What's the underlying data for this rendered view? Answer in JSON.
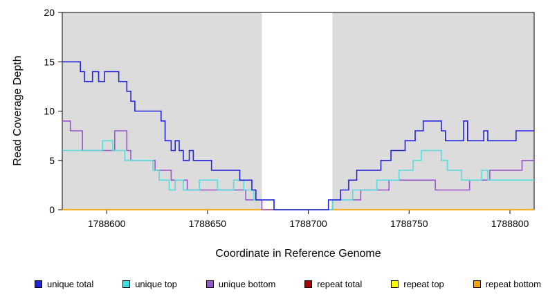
{
  "chart_data": {
    "type": "line",
    "subtype": "step-coverage-plot",
    "title": "",
    "xlabel": "Coordinate in Reference Genome",
    "ylabel": "Read Coverage Depth",
    "xlim": [
      1788578,
      1788812
    ],
    "ylim": [
      0,
      20
    ],
    "x_ticks": [
      1788600,
      1788650,
      1788700,
      1788750,
      1788800
    ],
    "y_ticks": [
      0,
      5,
      10,
      15,
      20
    ],
    "grid": false,
    "legend_position": "bottom",
    "background": {
      "plot_color": "#dcdcdc",
      "gap_region": [
        1788677,
        1788712
      ],
      "gap_color": "#ffffff"
    },
    "series": [
      {
        "name": "repeat total",
        "color": "#aa0000",
        "points": [
          [
            1788578,
            0
          ],
          [
            1788812,
            0
          ]
        ]
      },
      {
        "name": "repeat top",
        "color": "#ffff00",
        "points": [
          [
            1788578,
            0
          ],
          [
            1788812,
            0
          ]
        ]
      },
      {
        "name": "repeat bottom",
        "color": "#ffa500",
        "points": [
          [
            1788578,
            0
          ],
          [
            1788812,
            0
          ]
        ]
      },
      {
        "name": "unique bottom",
        "color": "#9955cc",
        "points": [
          [
            1788578,
            9
          ],
          [
            1788582,
            8
          ],
          [
            1788588,
            6
          ],
          [
            1788604,
            8
          ],
          [
            1788610,
            6
          ],
          [
            1788612,
            5
          ],
          [
            1788624,
            4
          ],
          [
            1788632,
            3
          ],
          [
            1788640,
            2
          ],
          [
            1788669,
            1
          ],
          [
            1788677,
            0
          ],
          [
            1788712,
            1
          ],
          [
            1788726,
            2
          ],
          [
            1788740,
            3
          ],
          [
            1788763,
            2
          ],
          [
            1788780,
            3
          ],
          [
            1788790,
            4
          ],
          [
            1788806,
            5
          ]
        ]
      },
      {
        "name": "unique top",
        "color": "#55dddd",
        "points": [
          [
            1788578,
            6
          ],
          [
            1788598,
            7
          ],
          [
            1788603,
            6
          ],
          [
            1788609,
            5
          ],
          [
            1788623,
            4
          ],
          [
            1788626,
            3
          ],
          [
            1788631,
            2
          ],
          [
            1788634,
            3
          ],
          [
            1788638,
            2
          ],
          [
            1788646,
            3
          ],
          [
            1788655,
            2
          ],
          [
            1788663,
            3
          ],
          [
            1788668,
            2
          ],
          [
            1788673,
            1
          ],
          [
            1788683,
            0
          ],
          [
            1788712,
            1
          ],
          [
            1788722,
            2
          ],
          [
            1788734,
            3
          ],
          [
            1788745,
            4
          ],
          [
            1788752,
            5
          ],
          [
            1788756,
            6
          ],
          [
            1788766,
            5
          ],
          [
            1788769,
            4
          ],
          [
            1788776,
            3
          ],
          [
            1788786,
            4
          ],
          [
            1788789,
            3
          ]
        ]
      },
      {
        "name": "unique total",
        "color": "#2222dd",
        "points": [
          [
            1788578,
            15
          ],
          [
            1788587,
            14
          ],
          [
            1788589,
            13
          ],
          [
            1788593,
            14
          ],
          [
            1788596,
            13
          ],
          [
            1788599,
            14
          ],
          [
            1788606,
            13
          ],
          [
            1788610,
            12
          ],
          [
            1788612,
            11
          ],
          [
            1788614,
            10
          ],
          [
            1788627,
            9
          ],
          [
            1788629,
            7
          ],
          [
            1788632,
            6
          ],
          [
            1788634,
            7
          ],
          [
            1788636,
            6
          ],
          [
            1788638,
            5
          ],
          [
            1788641,
            6
          ],
          [
            1788643,
            5
          ],
          [
            1788652,
            4
          ],
          [
            1788666,
            3
          ],
          [
            1788672,
            2
          ],
          [
            1788674,
            1
          ],
          [
            1788683,
            0
          ],
          [
            1788710,
            1
          ],
          [
            1788716,
            2
          ],
          [
            1788720,
            3
          ],
          [
            1788724,
            4
          ],
          [
            1788736,
            5
          ],
          [
            1788741,
            6
          ],
          [
            1788748,
            7
          ],
          [
            1788753,
            8
          ],
          [
            1788757,
            9
          ],
          [
            1788766,
            8
          ],
          [
            1788768,
            7
          ],
          [
            1788777,
            9
          ],
          [
            1788779,
            7
          ],
          [
            1788787,
            8
          ],
          [
            1788789,
            7
          ],
          [
            1788803,
            8
          ]
        ]
      }
    ],
    "legend": [
      {
        "label": "unique total",
        "color": "#2222dd"
      },
      {
        "label": "unique top",
        "color": "#44dddd"
      },
      {
        "label": "unique bottom",
        "color": "#9955cc"
      },
      {
        "label": "repeat total",
        "color": "#aa0000"
      },
      {
        "label": "repeat top",
        "color": "#ffff00"
      },
      {
        "label": "repeat bottom",
        "color": "#ffa500"
      }
    ]
  }
}
